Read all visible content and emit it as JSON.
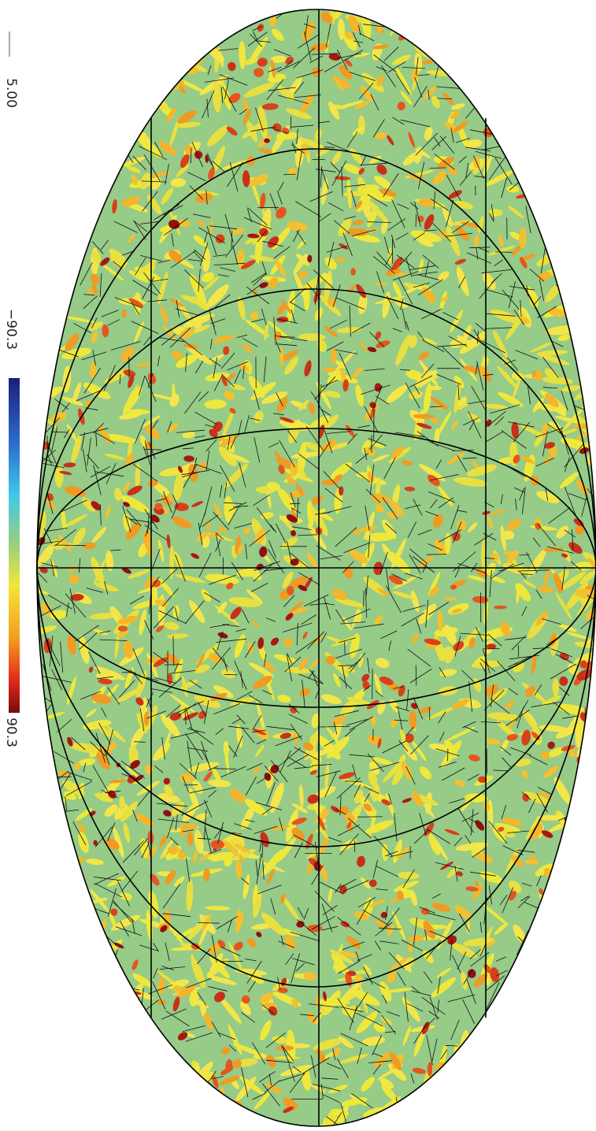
{
  "vector_scale": {
    "label": "5.00"
  },
  "colorbar": {
    "min_label": "−90.3",
    "max_label": "90.3"
  }
}
